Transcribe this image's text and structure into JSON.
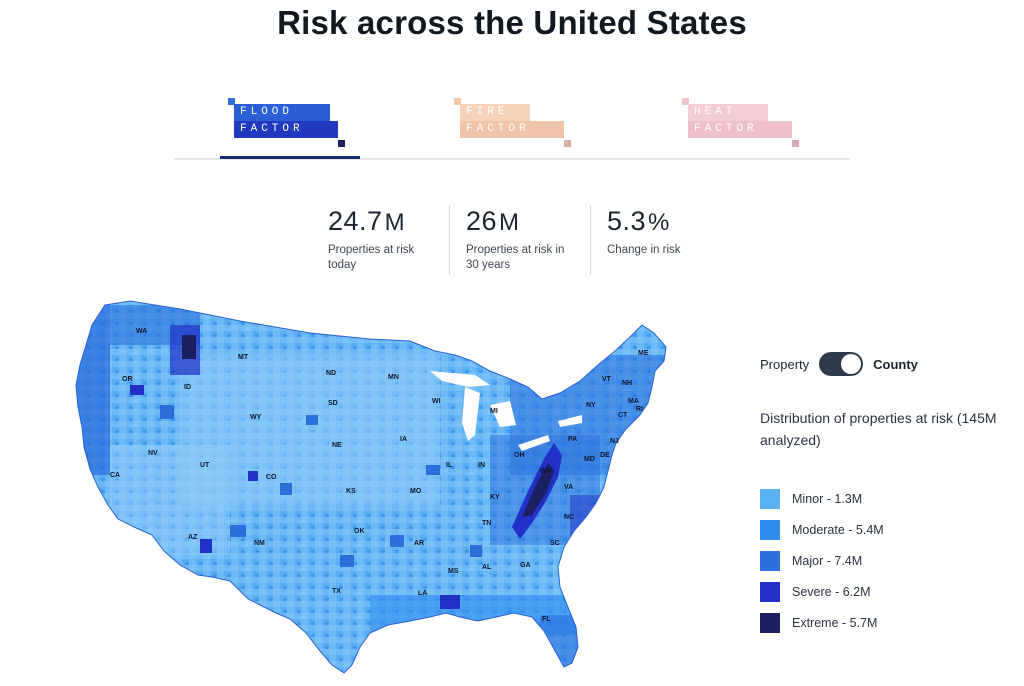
{
  "page": {
    "title": "Risk across the United States"
  },
  "tabs": [
    {
      "line1": "FLOOD",
      "line2": "FACTOR",
      "active": true
    },
    {
      "line1": "FIRE",
      "line2": "FACTOR",
      "active": false
    },
    {
      "line1": "HEAT",
      "line2": "FACTOR",
      "active": false
    }
  ],
  "stats": [
    {
      "value": "24.7",
      "unit": "M",
      "label": "Properties at risk today"
    },
    {
      "value": "26",
      "unit": "M",
      "label": "Properties at risk in 30 years"
    },
    {
      "value": "5.3",
      "unit": "%",
      "label": "Change in risk"
    }
  ],
  "toggle": {
    "left_label": "Property",
    "right_label": "County",
    "selected": "County"
  },
  "distribution": {
    "title": "Distribution of properties at risk (145M analyzed)"
  },
  "legend": [
    {
      "label": "Minor - 1.3M",
      "color": "#5ab2f5"
    },
    {
      "label": "Moderate - 5.4M",
      "color": "#2f8cf0"
    },
    {
      "label": "Major - 7.4M",
      "color": "#2a6fdc"
    },
    {
      "label": "Severe - 6.2M",
      "color": "#2130c6"
    },
    {
      "label": "Extreme - 5.7M",
      "color": "#1a2060"
    }
  ],
  "map": {
    "state_labels": [
      "WA",
      "OR",
      "CA",
      "ID",
      "NV",
      "MT",
      "WY",
      "UT",
      "AZ",
      "CO",
      "NM",
      "ND",
      "SD",
      "NE",
      "KS",
      "OK",
      "TX",
      "MN",
      "IA",
      "MO",
      "AR",
      "LA",
      "WI",
      "IL",
      "MI",
      "IN",
      "OH",
      "KY",
      "TN",
      "MS",
      "AL",
      "GA",
      "FL",
      "SC",
      "NC",
      "VA",
      "WV",
      "PA",
      "NY",
      "MD",
      "DE",
      "NJ",
      "CT",
      "RI",
      "MA",
      "VT",
      "NH",
      "ME"
    ]
  }
}
